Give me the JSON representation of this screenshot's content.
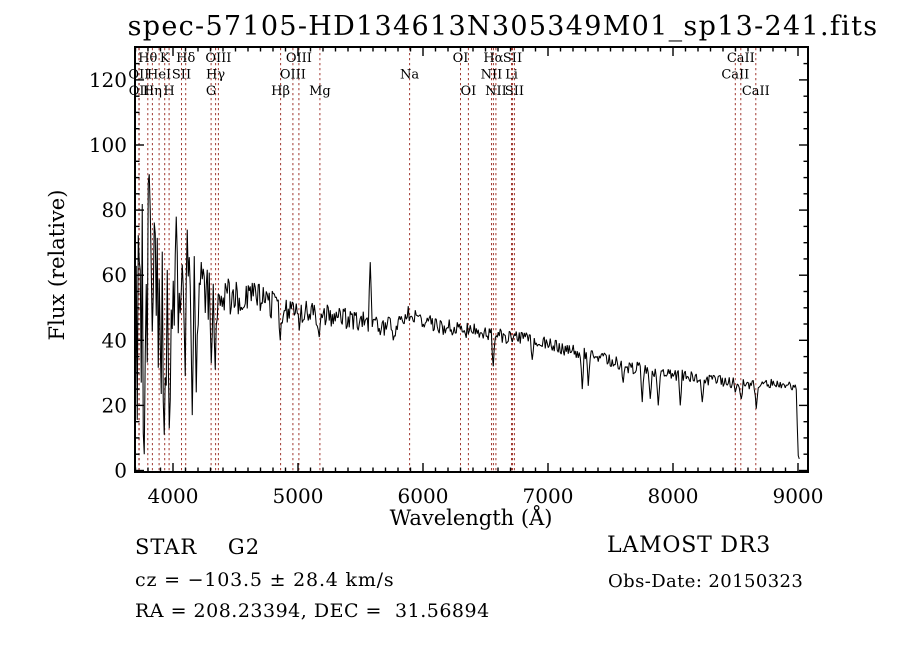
{
  "colors": {
    "background": "#ffffff",
    "spectrum": "#000000",
    "line_marker": "#a23b32",
    "text": "#000000"
  },
  "annotations": {
    "left": [
      {
        "id": "class",
        "text": "STAR    G2"
      },
      {
        "id": "cz",
        "text": "cz = −103.5 ± 28.4 km/s"
      },
      {
        "id": "radec",
        "text": "RA = 208.23394, DEC =  31.56894"
      }
    ],
    "right": [
      {
        "id": "survey",
        "text": "LAMOST DR3"
      },
      {
        "id": "obsdate",
        "text": "Obs-Date: 20150323"
      }
    ]
  },
  "chart_data": {
    "type": "line",
    "title": "spec-57105-HD134613N305349M01_sp13-241.fits",
    "xlabel": "Wavelength (Å)",
    "ylabel": "Flux (relative)",
    "xlim": [
      3696,
      9080
    ],
    "ylim": [
      0,
      130
    ],
    "x_ticks": [
      4000,
      5000,
      6000,
      7000,
      8000,
      9000
    ],
    "y_ticks": [
      0,
      20,
      40,
      60,
      80,
      100,
      120
    ],
    "x_minor_step": 100,
    "y_minor_step": 5,
    "grid": false,
    "legend": "none",
    "series": [
      {
        "name": "flux",
        "color": "#000000",
        "wl_start": 3698,
        "wl_end": 9010,
        "sample_step": 8,
        "noise_seed": 9,
        "continuum": [
          [
            3698,
            30
          ],
          [
            3712,
            45
          ],
          [
            3740,
            46
          ],
          [
            3780,
            50
          ],
          [
            3830,
            52
          ],
          [
            3870,
            50
          ],
          [
            3920,
            47
          ],
          [
            3960,
            46
          ],
          [
            4000,
            52
          ],
          [
            4050,
            54
          ],
          [
            4110,
            54
          ],
          [
            4170,
            54
          ],
          [
            4230,
            54
          ],
          [
            4290,
            53
          ],
          [
            4360,
            53
          ],
          [
            4430,
            53.5
          ],
          [
            4550,
            53.5
          ],
          [
            4700,
            53
          ],
          [
            4800,
            51
          ],
          [
            4870,
            48
          ],
          [
            4950,
            50.5
          ],
          [
            5050,
            49
          ],
          [
            5150,
            47.5
          ],
          [
            5250,
            47.5
          ],
          [
            5400,
            46.5
          ],
          [
            5550,
            45.5
          ],
          [
            5650,
            44.5
          ],
          [
            5780,
            44
          ],
          [
            5880,
            48
          ],
          [
            5940,
            48
          ],
          [
            6000,
            45.5
          ],
          [
            6120,
            44.5
          ],
          [
            6250,
            43.5
          ],
          [
            6400,
            42.8
          ],
          [
            6550,
            41.8
          ],
          [
            6700,
            41
          ],
          [
            6850,
            40
          ],
          [
            7000,
            38.8
          ],
          [
            7150,
            37.3
          ],
          [
            7300,
            35.8
          ],
          [
            7450,
            34.3
          ],
          [
            7600,
            32.3
          ],
          [
            7750,
            31
          ],
          [
            7900,
            30
          ],
          [
            8050,
            29.2
          ],
          [
            8200,
            28.4
          ],
          [
            8350,
            27.6
          ],
          [
            8500,
            26.8
          ],
          [
            8650,
            26.3
          ],
          [
            8800,
            26.8
          ],
          [
            8920,
            26.3
          ],
          [
            8985,
            25.3
          ],
          [
            8993,
            14
          ],
          [
            9002,
            5
          ],
          [
            9010,
            4
          ]
        ],
        "noise_amplitude": [
          [
            3698,
            28
          ],
          [
            3715,
            42
          ],
          [
            3800,
            40
          ],
          [
            3860,
            30
          ],
          [
            3920,
            26
          ],
          [
            3980,
            21
          ],
          [
            4040,
            17
          ],
          [
            4110,
            14
          ],
          [
            4180,
            12
          ],
          [
            4260,
            9.5
          ],
          [
            4350,
            7.5
          ],
          [
            4450,
            6
          ],
          [
            4600,
            5
          ],
          [
            4800,
            4.5
          ],
          [
            5000,
            4
          ],
          [
            5200,
            3.6
          ],
          [
            5450,
            3.2
          ],
          [
            5700,
            3
          ],
          [
            5950,
            2.8
          ],
          [
            6200,
            2.6
          ],
          [
            6500,
            2.4
          ],
          [
            6800,
            2.2
          ],
          [
            7100,
            2.2
          ],
          [
            7500,
            2.2
          ],
          [
            7900,
            2
          ],
          [
            8300,
            1.8
          ],
          [
            8700,
            1.5
          ],
          [
            9010,
            1
          ]
        ],
        "features": [
          [
            3770,
            5
          ],
          [
            3806,
            91
          ],
          [
            3933,
            11
          ],
          [
            3968,
            13
          ],
          [
            4022,
            78
          ],
          [
            4101,
            29
          ],
          [
            4112,
            74
          ],
          [
            4152,
            17
          ],
          [
            4188,
            24
          ],
          [
            4304,
            33
          ],
          [
            4338,
            31
          ],
          [
            4861,
            40
          ],
          [
            5010,
            43
          ],
          [
            5170,
            41
          ],
          [
            5577,
            64
          ],
          [
            5760,
            40
          ],
          [
            6563,
            32
          ],
          [
            6870,
            34
          ],
          [
            7270,
            25
          ],
          [
            7320,
            26
          ],
          [
            7605,
            27
          ],
          [
            7750,
            21
          ],
          [
            7820,
            22
          ],
          [
            7885,
            20
          ],
          [
            8060,
            20
          ],
          [
            8230,
            21
          ],
          [
            8498,
            24
          ],
          [
            8542,
            22
          ],
          [
            8662,
            19
          ]
        ]
      }
    ],
    "spectral_lines": [
      {
        "label": "OII",
        "wavelength": 3727,
        "row": 2
      },
      {
        "label": "OII",
        "wavelength": 3729.5,
        "row": 3
      },
      {
        "label": "Hθ",
        "wavelength": 3798,
        "row": 1
      },
      {
        "label": "Hη",
        "wavelength": 3835,
        "row": 3
      },
      {
        "label": "HeI",
        "wavelength": 3889,
        "row": 2
      },
      {
        "label": "K",
        "wavelength": 3933.7,
        "row": 1
      },
      {
        "label": "H",
        "wavelength": 3968.5,
        "row": 3
      },
      {
        "label": "SII",
        "wavelength": 4068,
        "row": 2
      },
      {
        "label": "Hδ",
        "wavelength": 4101.7,
        "row": 1
      },
      {
        "label": "G",
        "wavelength": 4305,
        "row": 3
      },
      {
        "label": "Hγ",
        "wavelength": 4340.5,
        "row": 2
      },
      {
        "label": "OIII",
        "wavelength": 4363,
        "row": 1
      },
      {
        "label": "Hβ",
        "wavelength": 4861,
        "row": 3
      },
      {
        "label": "OIII",
        "wavelength": 4959,
        "row": 2
      },
      {
        "label": "OIII",
        "wavelength": 5007,
        "row": 1
      },
      {
        "label": "Mg",
        "wavelength": 5175,
        "row": 3
      },
      {
        "label": "Na",
        "wavelength": 5893,
        "row": 2
      },
      {
        "label": "OI",
        "wavelength": 6300,
        "row": 1
      },
      {
        "label": "OI",
        "wavelength": 6363,
        "row": 3
      },
      {
        "label": "NII",
        "wavelength": 6548,
        "row": 2
      },
      {
        "label": "Hα",
        "wavelength": 6563,
        "row": 1
      },
      {
        "label": "NII",
        "wavelength": 6583,
        "row": 3
      },
      {
        "label": "Li",
        "wavelength": 6708,
        "row": 2
      },
      {
        "label": "SII",
        "wavelength": 6716,
        "row": 1
      },
      {
        "label": "SII",
        "wavelength": 6731,
        "row": 3
      },
      {
        "label": "CaII",
        "wavelength": 8498,
        "row": 2
      },
      {
        "label": "CaII",
        "wavelength": 8542,
        "row": 1
      },
      {
        "label": "CaII",
        "wavelength": 8662,
        "row": 3
      }
    ]
  }
}
